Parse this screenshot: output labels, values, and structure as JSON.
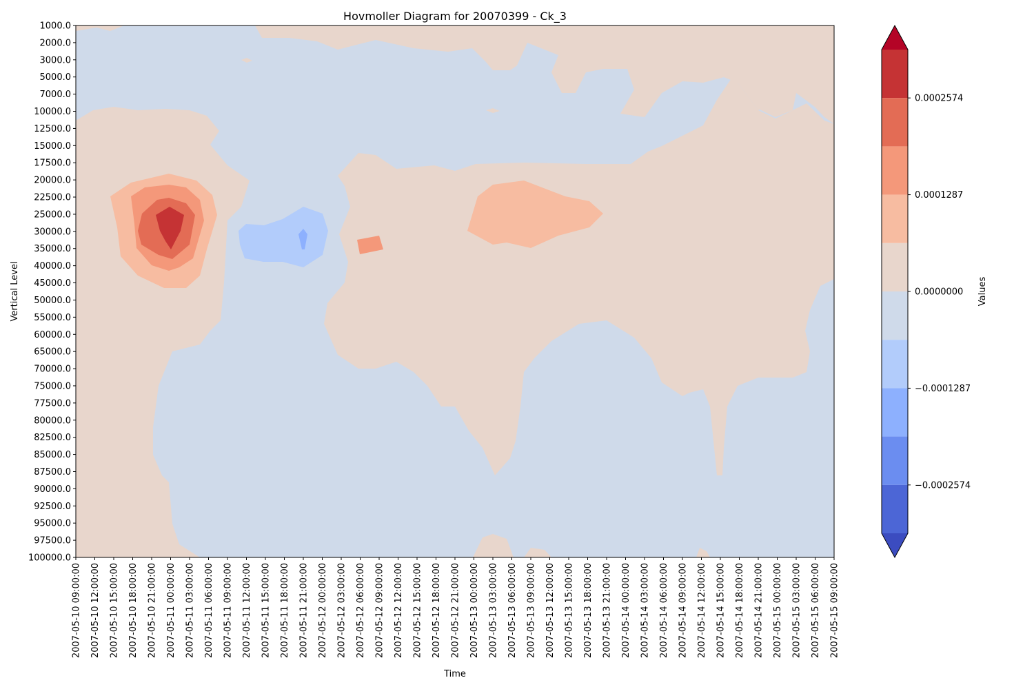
{
  "chart_data": {
    "type": "heatmap",
    "subtype": "filled-contour",
    "title": "Hovmoller Diagram for 20070399 - Ck_3",
    "xlabel": "Time",
    "ylabel": "Vertical Level",
    "y_inverted": true,
    "x_ticks": [
      "2007-05-10 09:00:00",
      "2007-05-10 12:00:00",
      "2007-05-10 15:00:00",
      "2007-05-10 18:00:00",
      "2007-05-10 21:00:00",
      "2007-05-11 00:00:00",
      "2007-05-11 03:00:00",
      "2007-05-11 06:00:00",
      "2007-05-11 09:00:00",
      "2007-05-11 12:00:00",
      "2007-05-11 15:00:00",
      "2007-05-11 18:00:00",
      "2007-05-11 21:00:00",
      "2007-05-12 00:00:00",
      "2007-05-12 03:00:00",
      "2007-05-12 06:00:00",
      "2007-05-12 09:00:00",
      "2007-05-12 12:00:00",
      "2007-05-12 15:00:00",
      "2007-05-12 18:00:00",
      "2007-05-12 21:00:00",
      "2007-05-13 00:00:00",
      "2007-05-13 03:00:00",
      "2007-05-13 06:00:00",
      "2007-05-13 09:00:00",
      "2007-05-13 12:00:00",
      "2007-05-13 15:00:00",
      "2007-05-13 18:00:00",
      "2007-05-13 21:00:00",
      "2007-05-14 00:00:00",
      "2007-05-14 03:00:00",
      "2007-05-14 06:00:00",
      "2007-05-14 09:00:00",
      "2007-05-14 12:00:00",
      "2007-05-14 15:00:00",
      "2007-05-14 18:00:00",
      "2007-05-14 21:00:00",
      "2007-05-15 00:00:00",
      "2007-05-15 03:00:00",
      "2007-05-15 06:00:00",
      "2007-05-15 09:00:00"
    ],
    "y_ticks": [
      "1000.0",
      "2000.0",
      "3000.0",
      "5000.0",
      "7000.0",
      "10000.0",
      "12500.0",
      "15000.0",
      "17500.0",
      "20000.0",
      "22500.0",
      "25000.0",
      "30000.0",
      "35000.0",
      "40000.0",
      "45000.0",
      "50000.0",
      "55000.0",
      "60000.0",
      "65000.0",
      "70000.0",
      "75000.0",
      "77500.0",
      "80000.0",
      "82500.0",
      "85000.0",
      "87500.0",
      "90000.0",
      "92500.0",
      "95000.0",
      "97500.0",
      "100000.0"
    ],
    "colorbar": {
      "label": "Values",
      "extend": "both",
      "tick_labels": [
        "0.0002574",
        "0.0001287",
        "0.0000000",
        "−0.0001287",
        "−0.0002574"
      ],
      "tick_values": [
        0.0002574,
        0.0001287,
        0.0,
        -0.0001287,
        -0.0002574
      ],
      "levels": [
        -0.000386,
        -0.0003217,
        -0.0002574,
        -0.000193,
        -0.0001287,
        -6.43e-05,
        0.0,
        6.43e-05,
        0.0001287,
        0.000193,
        0.0002574,
        0.0003217,
        0.000386
      ],
      "colors_high_to_low": [
        "#b40426",
        "#c53334",
        "#e36c55",
        "#f4987a",
        "#f7bca1",
        "#e8d6cc",
        "#cfdaea",
        "#b2ccfb",
        "#8db0fe",
        "#6b8df0",
        "#4c66d6",
        "#3b4cc0"
      ]
    },
    "contour_regions": [
      {
        "level": 0.0,
        "color": "#e8d6cc",
        "description": "near-zero positive background"
      },
      {
        "level": -6.43e-05,
        "color": "#cfdaea",
        "description": "near-zero negative regions"
      },
      {
        "level": 6.43e-05,
        "color": "#f7bca1",
        "description": "weak positive"
      },
      {
        "level": 0.0001287,
        "color": "#f4987a",
        "description": "moderate positive"
      },
      {
        "level": 0.000193,
        "color": "#e36c55",
        "description": "strong positive"
      },
      {
        "level": 0.0002574,
        "color": "#c53334",
        "description": "peak positive near 2007-05-11 00:00 at 25000-35000"
      },
      {
        "level": -6.43e-05,
        "color": "#b2ccfb",
        "description": "negative near 2007-05-11 21:00 at 25000-40000"
      },
      {
        "level": -0.0001287,
        "color": "#8db0fe",
        "description": "negative minimum near 2007-05-11 21:00 at 30000"
      }
    ],
    "grid": false,
    "legend": "colorbar-right"
  }
}
